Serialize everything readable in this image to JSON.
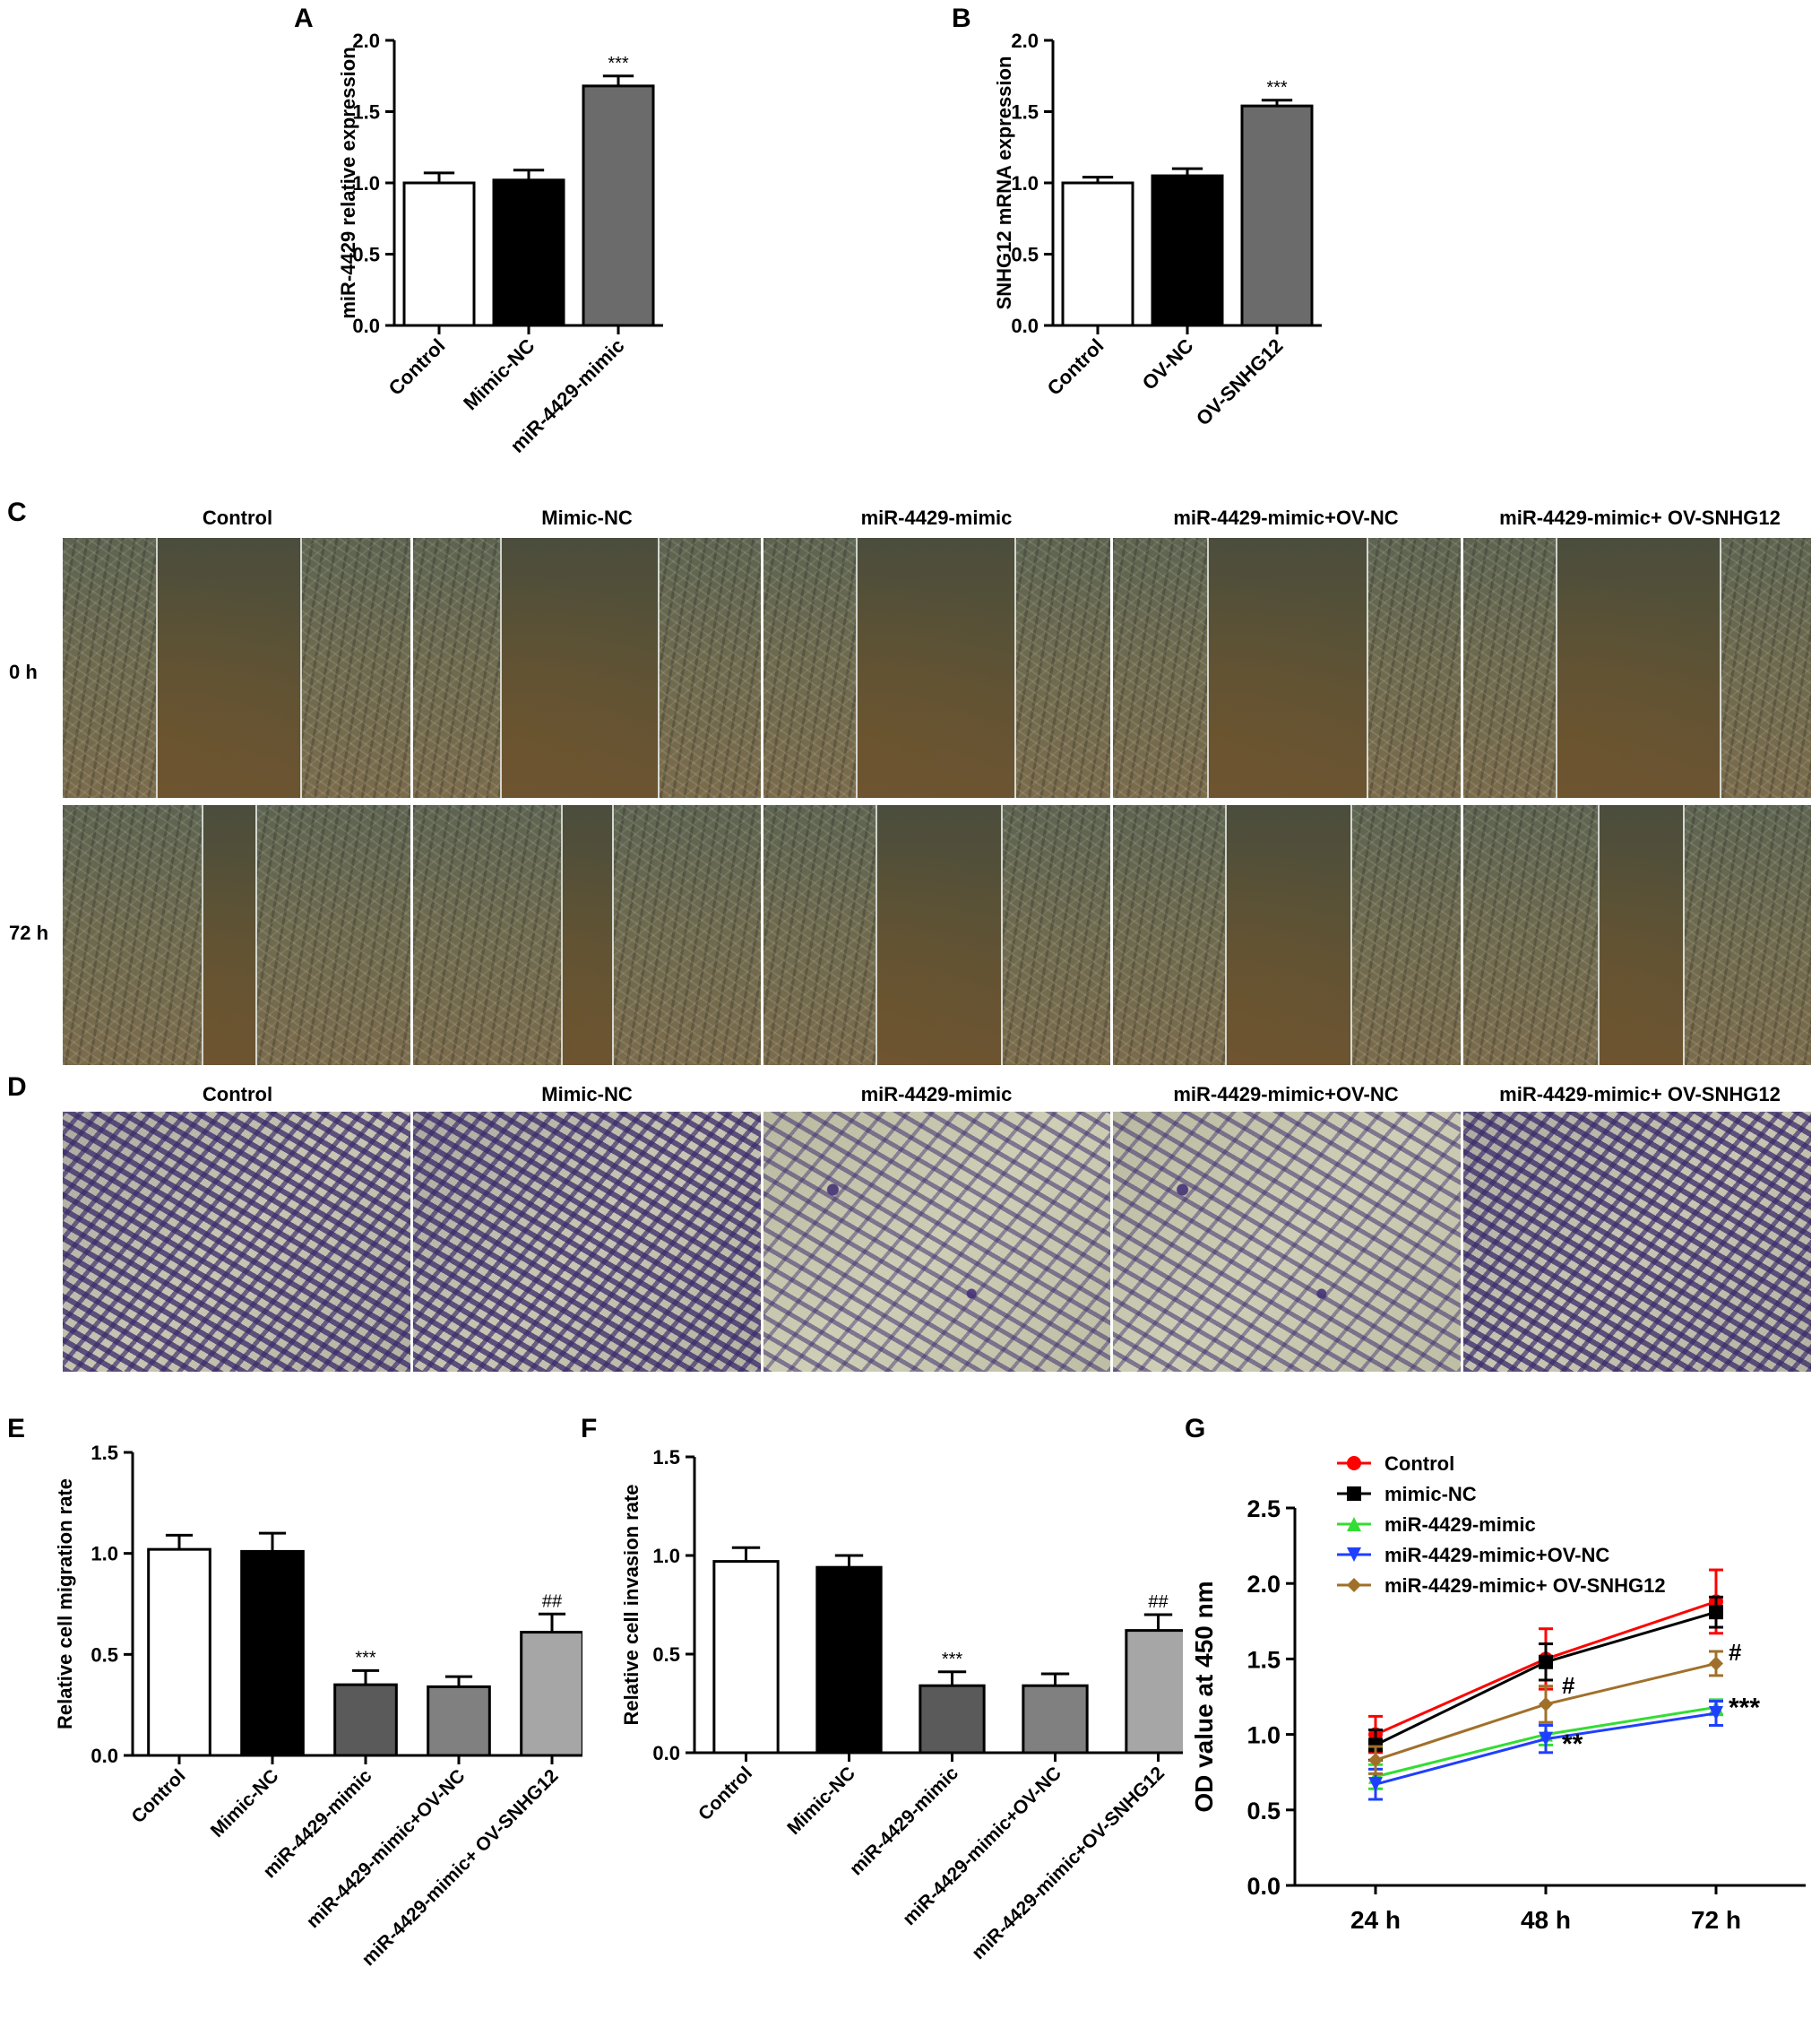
{
  "panels": {
    "A": "A",
    "B": "B",
    "C": "C",
    "D": "D",
    "E": "E",
    "F": "F",
    "G": "G"
  },
  "micrograph_columns": [
    "Control",
    "Mimic-NC",
    "miR-4429-mimic",
    "miR-4429-mimic+OV-NC",
    "miR-4429-mimic+ OV-SNHG12"
  ],
  "scratch_rows": [
    "0 h",
    "72 h"
  ],
  "chart_data": [
    {
      "id": "A",
      "type": "bar",
      "categories": [
        "Control",
        "Mimic-NC",
        "miR-4429-mimic"
      ],
      "values": [
        1.0,
        1.02,
        1.68
      ],
      "errors": [
        0.07,
        0.07,
        0.07
      ],
      "colors": [
        "#ffffff",
        "#000000",
        "#6b6b6b"
      ],
      "annotations": [
        "",
        "",
        "***"
      ],
      "ylabel": "miR-4429 relative expression",
      "ylim": [
        0,
        2.0
      ],
      "yticks": [
        "0.0",
        "0.5",
        "1.0",
        "1.5",
        "2.0"
      ]
    },
    {
      "id": "B",
      "type": "bar",
      "categories": [
        "Control",
        "OV-NC",
        "OV-SNHG12"
      ],
      "values": [
        1.0,
        1.05,
        1.54
      ],
      "errors": [
        0.04,
        0.05,
        0.04
      ],
      "colors": [
        "#ffffff",
        "#000000",
        "#6b6b6b"
      ],
      "annotations": [
        "",
        "",
        "***"
      ],
      "ylabel": "SNHG12 mRNA expression",
      "ylim": [
        0,
        2.0
      ],
      "yticks": [
        "0.0",
        "0.5",
        "1.0",
        "1.5",
        "2.0"
      ]
    },
    {
      "id": "E",
      "type": "bar",
      "categories": [
        "Control",
        "Mimic-NC",
        "miR-4429-mimic",
        "miR-4429-mimic+OV-NC",
        "miR-4429-mimic+ OV-SNHG12"
      ],
      "values": [
        1.02,
        1.01,
        0.35,
        0.34,
        0.61
      ],
      "errors": [
        0.07,
        0.09,
        0.07,
        0.05,
        0.09
      ],
      "colors": [
        "#ffffff",
        "#000000",
        "#5a5a5a",
        "#808080",
        "#a6a6a6"
      ],
      "annotations": [
        "",
        "",
        "***",
        "",
        "##"
      ],
      "ylabel": "Relative cell migration rate",
      "ylim": [
        0,
        1.5
      ],
      "yticks": [
        "0.0",
        "0.5",
        "1.0",
        "1.5"
      ]
    },
    {
      "id": "F",
      "type": "bar",
      "categories": [
        "Control",
        "Mimic-NC",
        "miR-4429-mimic",
        "miR-4429-mimic+OV-NC",
        "miR-4429-mimic+OV-SNHG12"
      ],
      "values": [
        0.97,
        0.94,
        0.34,
        0.34,
        0.62
      ],
      "errors": [
        0.07,
        0.06,
        0.07,
        0.06,
        0.08
      ],
      "colors": [
        "#ffffff",
        "#000000",
        "#5a5a5a",
        "#808080",
        "#a6a6a6"
      ],
      "annotations": [
        "",
        "",
        "***",
        "",
        "##"
      ],
      "ylabel": "Relative cell invasion rate",
      "ylim": [
        0,
        1.5
      ],
      "yticks": [
        "0.0",
        "0.5",
        "1.0",
        "1.5"
      ]
    },
    {
      "id": "G",
      "type": "line",
      "x": [
        "24 h",
        "48 h",
        "72 h"
      ],
      "series": [
        {
          "name": "Control",
          "color": "#ff0000",
          "marker": "circle",
          "values": [
            1.0,
            1.5,
            1.88
          ],
          "errors": [
            0.12,
            0.2,
            0.21
          ]
        },
        {
          "name": "mimic-NC",
          "color": "#000000",
          "marker": "square",
          "values": [
            0.93,
            1.48,
            1.81
          ],
          "errors": [
            0.1,
            0.12,
            0.1
          ]
        },
        {
          "name": "miR-4429-mimic",
          "color": "#33dd33",
          "marker": "triangle-up",
          "values": [
            0.72,
            1.0,
            1.18
          ],
          "errors": [
            0.08,
            0.07,
            0.05
          ]
        },
        {
          "name": "miR-4429-mimic+OV-NC",
          "color": "#1f3fff",
          "marker": "triangle-down",
          "values": [
            0.67,
            0.97,
            1.14
          ],
          "errors": [
            0.1,
            0.09,
            0.08
          ]
        },
        {
          "name": "miR-4429-mimic+ OV-SNHG12",
          "color": "#a0702a",
          "marker": "diamond",
          "values": [
            0.83,
            1.2,
            1.47
          ],
          "errors": [
            0.09,
            0.12,
            0.08
          ]
        }
      ],
      "annotations": [
        {
          "x": "48 h",
          "text": "#"
        },
        {
          "x": "48 h",
          "text": "**"
        },
        {
          "x": "72 h",
          "text": "#"
        },
        {
          "x": "72 h",
          "text": "***"
        }
      ],
      "ylabel": "OD value at 450 nm",
      "ylim": [
        0,
        2.5
      ],
      "yticks": [
        "0.0",
        "0.5",
        "1.0",
        "1.5",
        "2.0",
        "2.5"
      ]
    }
  ]
}
